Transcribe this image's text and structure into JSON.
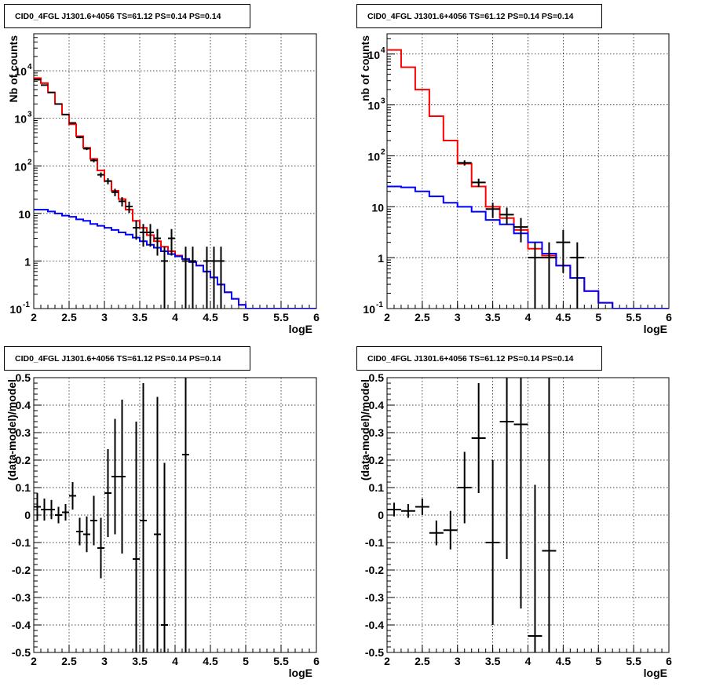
{
  "chart_data": [
    {
      "type": "line",
      "title": "CID0_4FGL J1301.6+4056 TS=61.12 PS=0.14 PS=0.14",
      "xlabel": "logE",
      "ylabel": "Nb of counts",
      "xlim": [
        2,
        6
      ],
      "ylim": [
        0.1,
        60000
      ],
      "yscale": "log",
      "grid": true,
      "x_ticks": [
        "2",
        "2.5",
        "3",
        "3.5",
        "4",
        "4.5",
        "5",
        "5.5",
        "6"
      ],
      "y_ticks": [
        {
          "base": "10",
          "exp": "-1"
        },
        {
          "base": "1",
          "exp": ""
        },
        {
          "base": "10",
          "exp": ""
        },
        {
          "base": "10",
          "exp": "2"
        },
        {
          "base": "10",
          "exp": "3"
        },
        {
          "base": "10",
          "exp": "4"
        }
      ],
      "series": [
        {
          "color": "#ff0000",
          "style": "step",
          "bin_width": 0.1,
          "x": [
            2.0,
            2.1,
            2.2,
            2.3,
            2.4,
            2.5,
            2.6,
            2.7,
            2.8,
            2.9,
            3.0,
            3.1,
            3.2,
            3.3,
            3.4,
            3.5,
            3.6,
            3.7,
            3.8,
            3.9,
            4.0,
            4.1,
            4.2,
            4.3,
            4.4,
            4.5,
            4.6,
            4.7,
            4.8,
            4.9,
            5.0,
            5.1,
            5.2,
            5.3,
            5.4,
            5.5,
            5.6,
            5.7,
            5.8,
            5.9
          ],
          "y": [
            7000,
            5500,
            3500,
            2000,
            1200,
            750,
            420,
            240,
            140,
            80,
            48,
            30,
            20,
            12,
            7,
            5,
            3.5,
            2.6,
            2.0,
            1.6,
            1.3,
            1.1,
            0.95,
            0.8,
            0.6,
            0.45,
            0.32,
            0.22,
            0.16,
            0.12,
            0.1,
            0.1,
            0.1,
            0.1,
            0.1,
            0.1,
            0.1,
            0.1,
            0.1,
            0.1
          ]
        },
        {
          "color": "#0000ff",
          "style": "step",
          "bin_width": 0.1,
          "x": [
            2.0,
            2.1,
            2.2,
            2.3,
            2.4,
            2.5,
            2.6,
            2.7,
            2.8,
            2.9,
            3.0,
            3.1,
            3.2,
            3.3,
            3.4,
            3.5,
            3.6,
            3.7,
            3.8,
            3.9,
            4.0,
            4.1,
            4.2,
            4.3,
            4.4,
            4.5,
            4.6,
            4.7,
            4.8,
            4.9,
            5.0,
            5.1,
            5.2,
            5.3,
            5.4,
            5.5,
            5.6,
            5.7,
            5.8,
            5.9
          ],
          "y": [
            12,
            12,
            11,
            10,
            9,
            8.5,
            7.5,
            7,
            6,
            5.5,
            5,
            4.5,
            4,
            3.6,
            3.1,
            2.6,
            2.2,
            1.9,
            1.6,
            1.4,
            1.25,
            1.1,
            0.95,
            0.8,
            0.6,
            0.45,
            0.32,
            0.22,
            0.16,
            0.12,
            0.1,
            0.1,
            0.1,
            0.1,
            0.1,
            0.1,
            0.1,
            0.1,
            0.1,
            0.1
          ]
        },
        {
          "color": "#000000",
          "style": "errorbar",
          "xerr": 0.05,
          "x": [
            2.05,
            2.15,
            2.25,
            2.35,
            2.45,
            2.55,
            2.65,
            2.75,
            2.85,
            2.95,
            3.05,
            3.15,
            3.25,
            3.35,
            3.45,
            3.55,
            3.65,
            3.75,
            3.85,
            3.95,
            4.15,
            4.25,
            4.45,
            4.55,
            4.65
          ],
          "y": [
            6500,
            5000,
            3500,
            2000,
            1200,
            800,
            400,
            230,
            130,
            65,
            48,
            28,
            18,
            14,
            5,
            4,
            4,
            3,
            1,
            3,
            1,
            1,
            1,
            1,
            1
          ],
          "err_low": [
            80,
            70,
            60,
            45,
            35,
            28,
            20,
            15,
            11,
            8,
            7,
            5,
            4,
            3.7,
            2.2,
            2,
            2,
            1.7,
            0.95,
            1.7,
            0.95,
            0.95,
            0.95,
            0.95,
            0.95
          ],
          "err_high": [
            80,
            70,
            60,
            45,
            35,
            28,
            20,
            15,
            11,
            8,
            7,
            5,
            4,
            3.7,
            2.2,
            2,
            2,
            1.7,
            1,
            1.7,
            1,
            1,
            1,
            1,
            1
          ]
        }
      ]
    },
    {
      "type": "line",
      "title": "CID0_4FGL J1301.6+4056 TS=61.12 PS=0.14 PS=0.14",
      "xlabel": "logE",
      "ylabel": "nb of counts",
      "xlim": [
        2,
        6
      ],
      "ylim": [
        0.1,
        25000
      ],
      "yscale": "log",
      "grid": true,
      "x_ticks": [
        "2",
        "2.5",
        "3",
        "3.5",
        "4",
        "4.5",
        "5",
        "5.5",
        "6"
      ],
      "y_ticks": [
        {
          "base": "10",
          "exp": "-1"
        },
        {
          "base": "1",
          "exp": ""
        },
        {
          "base": "10",
          "exp": ""
        },
        {
          "base": "10",
          "exp": "2"
        },
        {
          "base": "10",
          "exp": "3"
        },
        {
          "base": "10",
          "exp": "4"
        }
      ],
      "series": [
        {
          "color": "#ff0000",
          "style": "step",
          "bin_width": 0.2,
          "x": [
            2.0,
            2.2,
            2.4,
            2.6,
            2.8,
            3.0,
            3.2,
            3.4,
            3.6,
            3.8,
            4.0,
            4.2,
            4.4,
            4.6,
            4.8,
            5.0,
            5.2,
            5.4,
            5.6,
            5.8
          ],
          "y": [
            12000,
            5500,
            2000,
            600,
            200,
            70,
            25,
            10,
            6,
            3.5,
            1.5,
            1.1,
            0.7,
            0.4,
            0.22,
            0.13,
            0.1,
            0.1,
            0.1,
            0.1
          ]
        },
        {
          "color": "#0000ff",
          "style": "step",
          "bin_width": 0.2,
          "x": [
            2.0,
            2.2,
            2.4,
            2.6,
            2.8,
            3.0,
            3.2,
            3.4,
            3.6,
            3.8,
            4.0,
            4.2,
            4.4,
            4.6,
            4.8,
            5.0,
            5.2,
            5.4,
            5.6,
            5.8
          ],
          "y": [
            25,
            24,
            20,
            16,
            12,
            10,
            8,
            5.5,
            4.5,
            3,
            2,
            1.2,
            0.7,
            0.4,
            0.22,
            0.13,
            0.1,
            0.1,
            0.1,
            0.1
          ]
        },
        {
          "color": "#000000",
          "style": "errorbar",
          "xerr": 0.1,
          "x": [
            3.1,
            3.3,
            3.5,
            3.7,
            3.9,
            4.1,
            4.3,
            4.5,
            4.7
          ],
          "y": [
            73,
            30,
            9,
            7,
            4,
            1,
            1,
            2,
            1
          ],
          "err_low": [
            8.5,
            5.5,
            3,
            2.6,
            2,
            0.95,
            0.95,
            1.5,
            0.95
          ],
          "err_high": [
            8.5,
            5.5,
            3,
            2.6,
            2,
            1,
            1,
            1.5,
            1
          ]
        }
      ]
    },
    {
      "type": "scatter",
      "title": "CID0_4FGL J1301.6+4056 TS=61.12 PS=0.14 PS=0.14",
      "xlabel": "logE",
      "ylabel": "(data-model)/model",
      "xlim": [
        2,
        6
      ],
      "ylim": [
        -0.5,
        0.5
      ],
      "grid": true,
      "x_ticks": [
        "2",
        "2.5",
        "3",
        "3.5",
        "4",
        "4.5",
        "5",
        "5.5",
        "6"
      ],
      "y_ticks": [
        "-0.5",
        "-0.4",
        "-0.3",
        "-0.2",
        "-0.1",
        "0",
        "0.1",
        "0.2",
        "0.3",
        "0.4",
        "0.5"
      ],
      "series": [
        {
          "color": "#000000",
          "style": "errorbar",
          "xerr": 0.05,
          "x": [
            2.05,
            2.15,
            2.25,
            2.35,
            2.45,
            2.55,
            2.65,
            2.75,
            2.85,
            2.95,
            3.05,
            3.15,
            3.25,
            3.45,
            3.55,
            3.75,
            3.85,
            4.15
          ],
          "y": [
            0.03,
            0.02,
            0.02,
            0.0,
            0.01,
            0.07,
            -0.06,
            -0.07,
            -0.02,
            -0.12,
            0.08,
            0.14,
            0.14,
            -0.16,
            -0.02,
            -0.07,
            -0.4,
            0.22
          ],
          "err_low": [
            0.05,
            0.04,
            0.035,
            0.03,
            0.03,
            0.05,
            0.05,
            0.065,
            0.09,
            0.11,
            0.16,
            0.21,
            0.28,
            0.5,
            0.5,
            0.5,
            0.3,
            0.8
          ],
          "err_high": [
            0.05,
            0.04,
            0.035,
            0.03,
            0.03,
            0.05,
            0.05,
            0.065,
            0.09,
            0.11,
            0.16,
            0.21,
            0.28,
            0.5,
            0.5,
            0.5,
            0.59,
            0.8
          ]
        }
      ]
    },
    {
      "type": "scatter",
      "title": "CID0_4FGL J1301.6+4056 TS=61.12 PS=0.14 PS=0.14",
      "xlabel": "logE",
      "ylabel": "(data-model)/model",
      "xlim": [
        2,
        6
      ],
      "ylim": [
        -0.5,
        0.5
      ],
      "grid": true,
      "x_ticks": [
        "2",
        "2.5",
        "3",
        "3.5",
        "4",
        "4.5",
        "5",
        "5.5",
        "6"
      ],
      "y_ticks": [
        "-0.5",
        "-0.4",
        "-0.3",
        "-0.2",
        "-0.1",
        "0",
        "0.1",
        "0.2",
        "0.3",
        "0.4",
        "0.5"
      ],
      "series": [
        {
          "color": "#000000",
          "style": "errorbar",
          "xerr": 0.1,
          "x": [
            2.1,
            2.3,
            2.5,
            2.7,
            2.9,
            3.1,
            3.3,
            3.5,
            3.7,
            3.9,
            4.1,
            4.3
          ],
          "y": [
            0.02,
            0.015,
            0.03,
            -0.065,
            -0.055,
            0.1,
            0.28,
            -0.1,
            0.34,
            0.33,
            -0.44,
            -0.13
          ],
          "err_low": [
            0.025,
            0.025,
            0.03,
            0.045,
            0.07,
            0.13,
            0.2,
            0.3,
            0.5,
            0.67,
            0.6,
            0.6
          ],
          "err_high": [
            0.025,
            0.025,
            0.03,
            0.045,
            0.07,
            0.13,
            0.2,
            0.3,
            0.5,
            0.67,
            0.55,
            0.7
          ]
        }
      ]
    }
  ]
}
